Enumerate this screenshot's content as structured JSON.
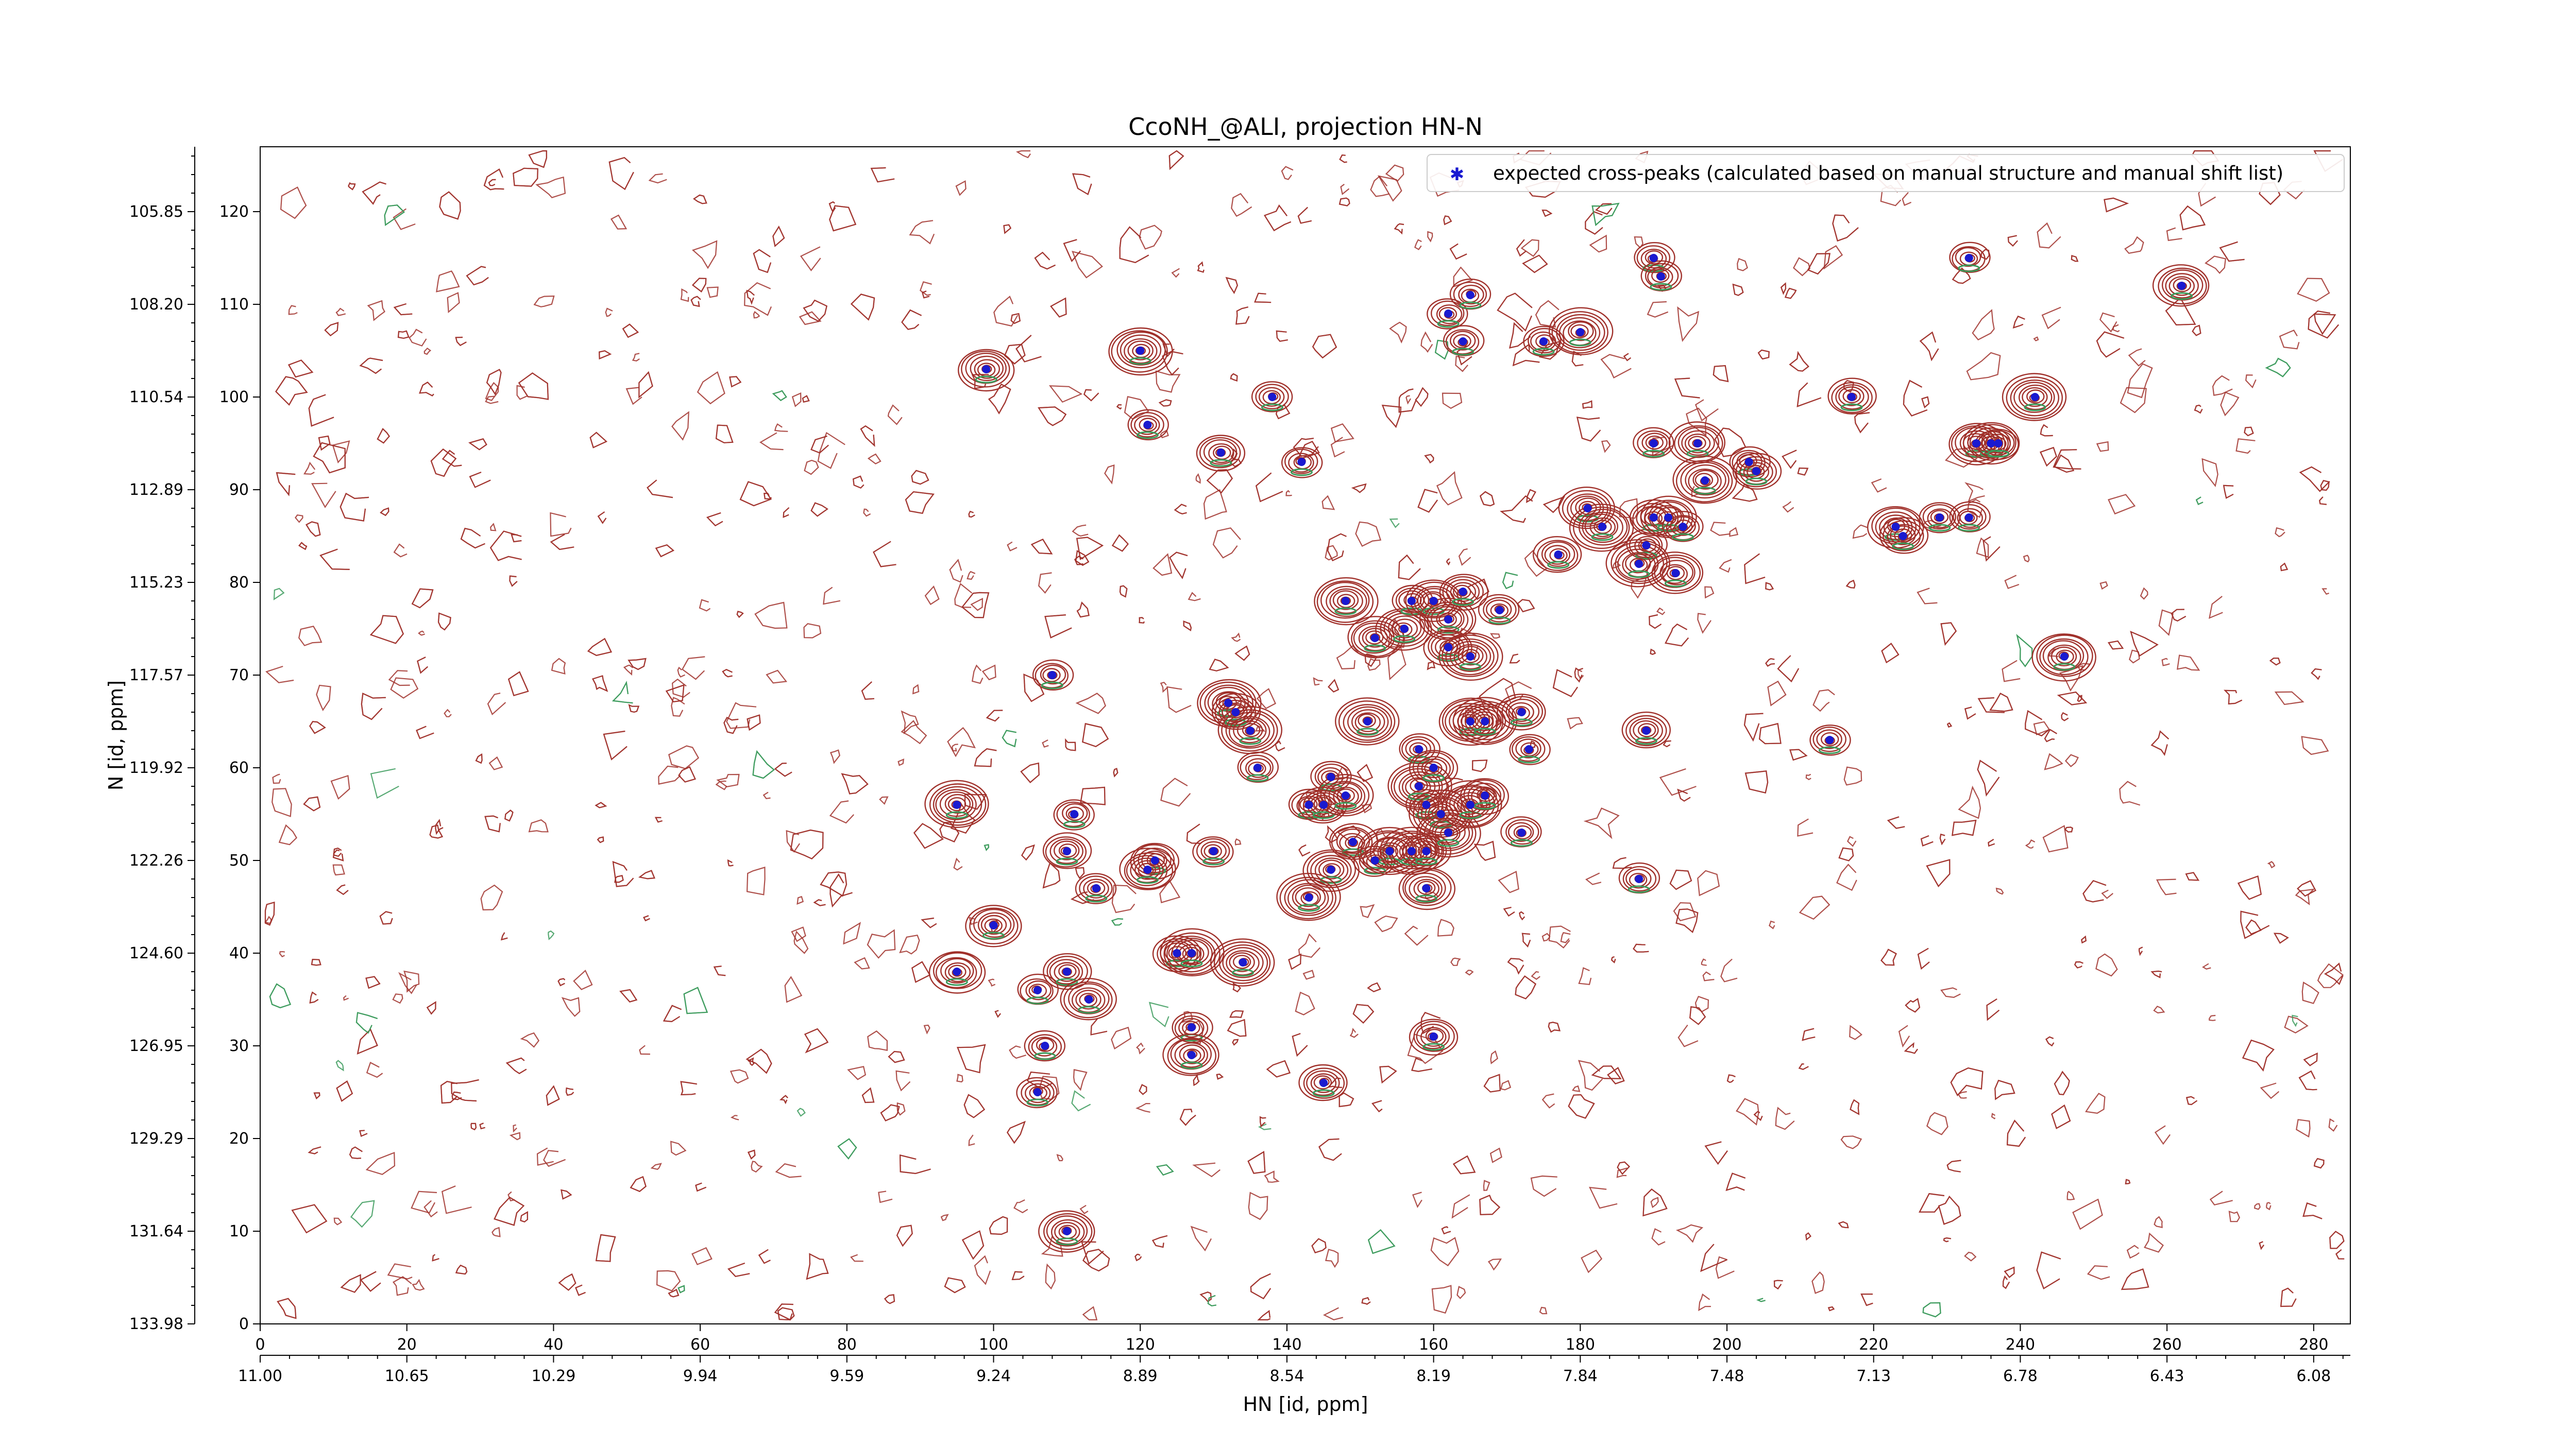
{
  "chart_data": {
    "type": "scatter",
    "title": "CcoNH_@ALI, projection HN-N",
    "xlabel": "HN [id, ppm]",
    "ylabel": "N [id, ppm]",
    "x_index_ticks": [
      "0",
      "20",
      "40",
      "60",
      "80",
      "100",
      "120",
      "140",
      "160",
      "180",
      "200",
      "220",
      "240",
      "260",
      "280"
    ],
    "x_ppm_ticks": [
      "11.00",
      "10.65",
      "10.29",
      "9.94",
      "9.59",
      "9.24",
      "8.89",
      "8.54",
      "8.19",
      "7.84",
      "7.48",
      "7.13",
      "6.78",
      "6.43",
      "6.08"
    ],
    "y_index_ticks": [
      "0",
      "10",
      "20",
      "30",
      "40",
      "50",
      "60",
      "70",
      "80",
      "90",
      "100",
      "110",
      "120"
    ],
    "y_ppm_ticks": [
      "133.98",
      "131.64",
      "129.29",
      "126.95",
      "124.60",
      "122.26",
      "119.92",
      "117.57",
      "115.23",
      "112.89",
      "110.54",
      "108.20",
      "105.85"
    ],
    "xlim": [
      0,
      285
    ],
    "ylim": [
      0,
      127
    ],
    "grid": false,
    "legend": {
      "position": "top-right",
      "entries": [
        "expected cross-peaks (calculated based on manual structure and manual shift list)"
      ]
    },
    "colors": {
      "contour_positive": "#a0302a",
      "contour_negative": "#3a9a5a",
      "marker": "#1a1ad0"
    },
    "series": [
      {
        "name": "expected cross-peaks (calculated based on manual structure and manual shift list)",
        "points": [
          [
            99,
            103
          ],
          [
            120,
            105
          ],
          [
            108,
            70
          ],
          [
            121,
            97
          ],
          [
            131,
            94
          ],
          [
            138,
            100
          ],
          [
            142,
            93
          ],
          [
            95,
            56
          ],
          [
            100,
            43
          ],
          [
            95,
            38
          ],
          [
            106,
            36
          ],
          [
            107,
            30
          ],
          [
            106,
            25
          ],
          [
            110,
            38
          ],
          [
            113,
            35
          ],
          [
            111,
            55
          ],
          [
            110,
            51
          ],
          [
            114,
            47
          ],
          [
            122,
            50
          ],
          [
            121,
            49
          ],
          [
            130,
            51
          ],
          [
            125,
            40
          ],
          [
            127,
            40
          ],
          [
            134,
            39
          ],
          [
            127,
            32
          ],
          [
            127,
            29
          ],
          [
            145,
            26
          ],
          [
            110,
            10
          ],
          [
            160,
            31
          ],
          [
            132,
            67
          ],
          [
            133,
            66
          ],
          [
            135,
            64
          ],
          [
            136,
            60
          ],
          [
            146,
            59
          ],
          [
            143,
            56
          ],
          [
            145,
            56
          ],
          [
            148,
            57
          ],
          [
            149,
            52
          ],
          [
            146,
            49
          ],
          [
            143,
            46
          ],
          [
            152,
            50
          ],
          [
            154,
            51
          ],
          [
            157,
            51
          ],
          [
            159,
            47
          ],
          [
            159,
            51
          ],
          [
            159,
            56
          ],
          [
            158,
            58
          ],
          [
            158,
            62
          ],
          [
            160,
            60
          ],
          [
            161,
            55
          ],
          [
            162,
            53
          ],
          [
            165,
            56
          ],
          [
            167,
            57
          ],
          [
            172,
            53
          ],
          [
            165,
            65
          ],
          [
            167,
            65
          ],
          [
            172,
            66
          ],
          [
            173,
            62
          ],
          [
            151,
            65
          ],
          [
            152,
            74
          ],
          [
            156,
            75
          ],
          [
            157,
            78
          ],
          [
            160,
            78
          ],
          [
            162,
            76
          ],
          [
            164,
            79
          ],
          [
            162,
            73
          ],
          [
            165,
            72
          ],
          [
            169,
            77
          ],
          [
            148,
            78
          ],
          [
            162,
            109
          ],
          [
            165,
            111
          ],
          [
            164,
            106
          ],
          [
            175,
            106
          ],
          [
            180,
            107
          ],
          [
            177,
            83
          ],
          [
            181,
            88
          ],
          [
            183,
            86
          ],
          [
            189,
            84
          ],
          [
            190,
            87
          ],
          [
            193,
            81
          ],
          [
            192,
            87
          ],
          [
            194,
            86
          ],
          [
            188,
            82
          ],
          [
            189,
            64
          ],
          [
            188,
            48
          ],
          [
            190,
            115
          ],
          [
            191,
            113
          ],
          [
            190,
            95
          ],
          [
            196,
            95
          ],
          [
            197,
            91
          ],
          [
            203,
            93
          ],
          [
            204,
            92
          ],
          [
            214,
            63
          ],
          [
            217,
            100
          ],
          [
            223,
            86
          ],
          [
            224,
            85
          ],
          [
            229,
            87
          ],
          [
            233,
            87
          ],
          [
            234,
            95
          ],
          [
            233,
            115
          ],
          [
            236,
            95
          ],
          [
            237,
            95
          ],
          [
            242,
            100
          ],
          [
            246,
            72
          ],
          [
            262,
            112
          ]
        ]
      }
    ]
  }
}
